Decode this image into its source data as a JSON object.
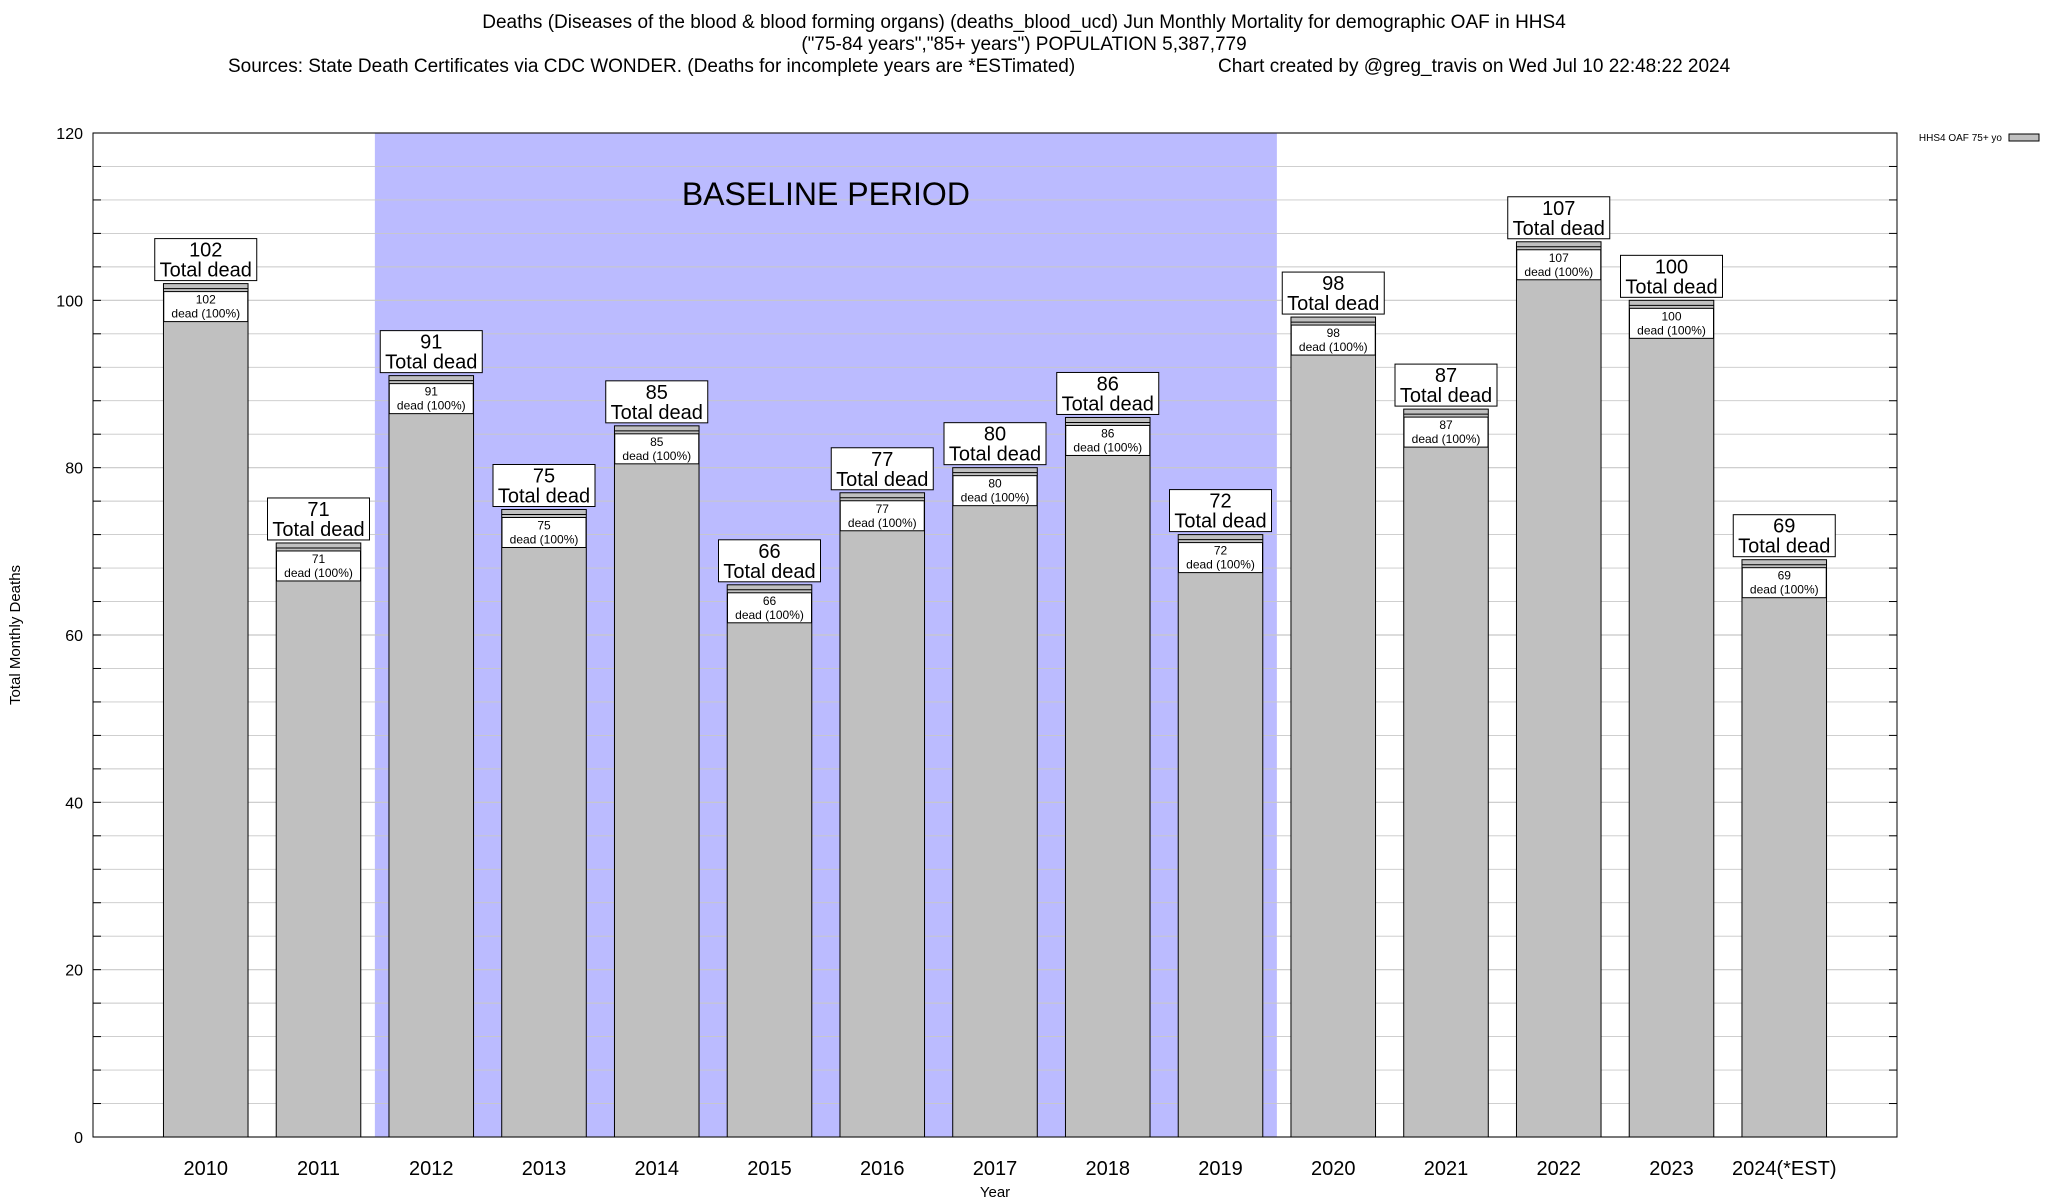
{
  "title": {
    "line1": "Deaths (Diseases of the blood & blood forming organs) (deaths_blood_ucd) Jun Monthly Mortality for demographic OAF in HHS4",
    "line2": "(\"75-84 years\",\"85+ years\") POPULATION 5,387,779",
    "line3_left": "Sources: State Death Certificates via CDC WONDER. (Deaths for incomplete years are *ESTimated)",
    "line3_right": "Chart created by @greg_travis on Wed Jul 10 22:48:22 2024"
  },
  "chart_data": {
    "type": "bar",
    "categories": [
      "2010",
      "2011",
      "2012",
      "2013",
      "2014",
      "2015",
      "2016",
      "2017",
      "2018",
      "2019",
      "2020",
      "2021",
      "2022",
      "2023",
      "2024(*EST)"
    ],
    "series": [
      {
        "name": "HHS4 OAF 75+ yo",
        "values": [
          102,
          71,
          91,
          75,
          85,
          66,
          77,
          80,
          86,
          72,
          98,
          87,
          107,
          100,
          69
        ]
      }
    ],
    "xlabel": "Year",
    "ylabel": "Total Monthly Deaths",
    "ylim": [
      0,
      120
    ],
    "yticks": [
      0,
      20,
      40,
      60,
      80,
      100,
      120
    ],
    "grid": true,
    "legend": "top-right",
    "bar_label_top": "Total dead",
    "bar_label_inner": "dead (100%)",
    "baseline_period": {
      "label": "BASELINE PERIOD",
      "from": "2012",
      "to": "2019"
    },
    "colors": {
      "bar": "#c0c0c0",
      "baseline": "#bbbbff",
      "grid": "#c8c8c8"
    }
  }
}
